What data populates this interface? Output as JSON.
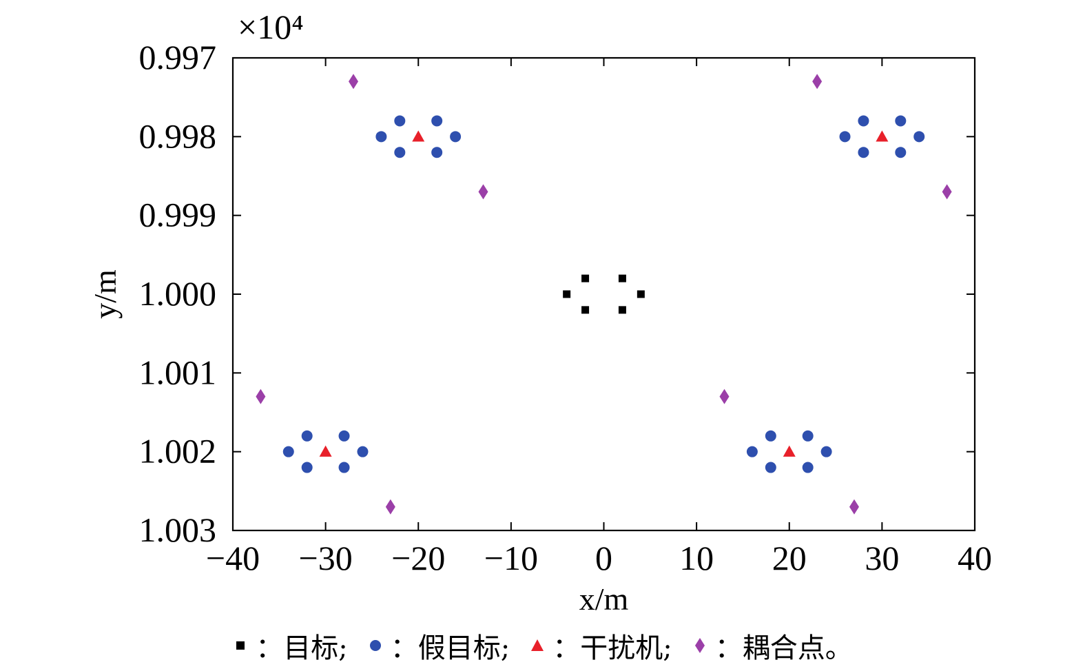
{
  "chart_data": {
    "type": "scatter",
    "xlabel": "x/m",
    "ylabel": "y/m",
    "y_multiplier": "×10⁴",
    "xlim": [
      -40,
      40
    ],
    "ylim": [
      0.997,
      1.003
    ],
    "y_inverted": true,
    "x_ticks": [
      -40,
      -30,
      -20,
      -10,
      0,
      10,
      20,
      30,
      40
    ],
    "x_tick_labels": [
      "−40",
      "−30",
      "−20",
      "−10",
      "0",
      "10",
      "20",
      "30",
      "40"
    ],
    "y_ticks": [
      0.997,
      0.998,
      0.999,
      1.0,
      1.001,
      1.002,
      1.003
    ],
    "y_tick_labels": [
      "0.997",
      "0.998",
      "0.999",
      "1.000",
      "1.001",
      "1.002",
      "1.003"
    ],
    "grid": false,
    "legend_position": "bottom",
    "series": [
      {
        "name": "目标",
        "legend_text": "：目标;",
        "marker": "square",
        "color": "#000000",
        "points": [
          [
            -4,
            1.0
          ],
          [
            -2,
            0.9998
          ],
          [
            2,
            0.9998
          ],
          [
            4,
            1.0
          ],
          [
            -2,
            1.0002
          ],
          [
            2,
            1.0002
          ]
        ]
      },
      {
        "name": "假目标",
        "legend_text": "：假目标;",
        "marker": "circle",
        "color": "#2E4FAE",
        "points": [
          [
            -24,
            0.998
          ],
          [
            -22,
            0.9978
          ],
          [
            -18,
            0.9978
          ],
          [
            -16,
            0.998
          ],
          [
            -22,
            0.9982
          ],
          [
            -18,
            0.9982
          ],
          [
            26,
            0.998
          ],
          [
            28,
            0.9978
          ],
          [
            32,
            0.9978
          ],
          [
            34,
            0.998
          ],
          [
            28,
            0.9982
          ],
          [
            32,
            0.9982
          ],
          [
            -34,
            1.002
          ],
          [
            -32,
            1.0018
          ],
          [
            -28,
            1.0018
          ],
          [
            -26,
            1.002
          ],
          [
            -32,
            1.0022
          ],
          [
            -28,
            1.0022
          ],
          [
            16,
            1.002
          ],
          [
            18,
            1.0018
          ],
          [
            22,
            1.0018
          ],
          [
            24,
            1.002
          ],
          [
            18,
            1.0022
          ],
          [
            22,
            1.0022
          ]
        ]
      },
      {
        "name": "干扰机",
        "legend_text": "：干扰机;",
        "marker": "triangle",
        "color": "#E8202A",
        "points": [
          [
            -20,
            0.998
          ],
          [
            30,
            0.998
          ],
          [
            -30,
            1.002
          ],
          [
            20,
            1.002
          ]
        ]
      },
      {
        "name": "耦合点",
        "legend_text": "：耦合点。",
        "marker": "diamond",
        "color": "#9B3FA8",
        "points": [
          [
            -27,
            0.9973
          ],
          [
            -13,
            0.9987
          ],
          [
            23,
            0.9973
          ],
          [
            37,
            0.9987
          ],
          [
            -37,
            1.0013
          ],
          [
            -23,
            1.0027
          ],
          [
            13,
            1.0013
          ],
          [
            27,
            1.0027
          ]
        ]
      }
    ]
  }
}
